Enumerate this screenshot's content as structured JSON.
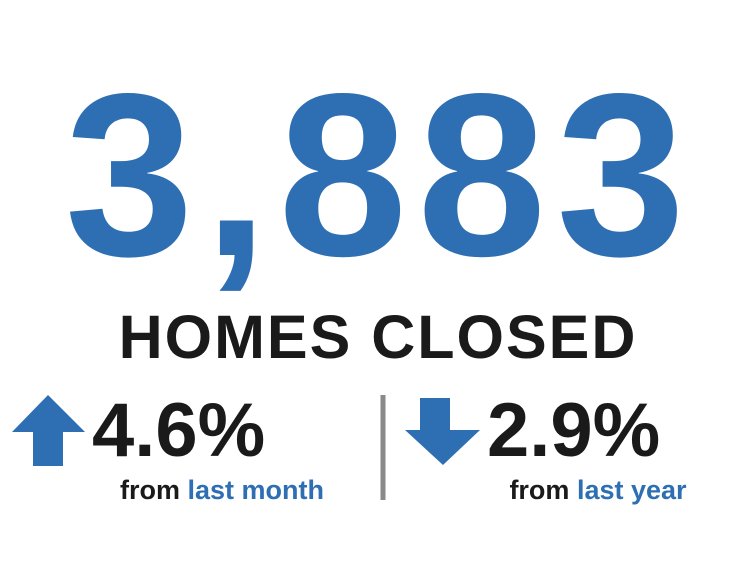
{
  "headline": {
    "value": "3,883",
    "label": "HOMES CLOSED"
  },
  "changes": [
    {
      "value": "4.6%",
      "from": "from",
      "period": "last month"
    },
    {
      "value": "2.9%",
      "from": "from",
      "period": "last year"
    }
  ]
}
